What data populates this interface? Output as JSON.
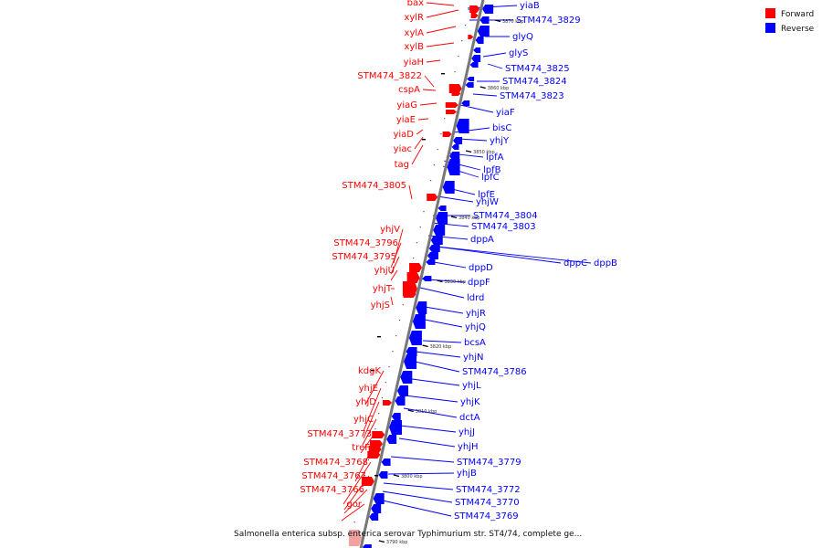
{
  "caption": "Salmonella enterica subsp. enterica serovar Typhimurium str. ST4/74, complete ge...",
  "legend": [
    {
      "label": "Forward",
      "color": "#ff0000"
    },
    {
      "label": "Reverse",
      "color": "#0000ff"
    }
  ],
  "colors": {
    "forward": "#ff0000",
    "reverse": "#0000ff",
    "backbone": "#777777",
    "forward_faint": "#f2a0a0"
  },
  "scale_ticks": [
    "3870 kbp",
    "3860 kbp",
    "3850 kbp",
    "3840 kbp",
    "3830 kbp",
    "3820 kbp",
    "3810 kbp",
    "3800 kbp",
    "3790 kbp"
  ],
  "forward_labels": [
    "bax",
    "xylR",
    "xylA",
    "xylB",
    "yiaH",
    "STM474_3822",
    "cspA",
    "yiaG",
    "yiaE",
    "yiaD",
    "yiac",
    "tag",
    "STM474_3805",
    "yhjV",
    "STM474_3796",
    "STM474_3795",
    "yhjU",
    "yhjT",
    "yhjS",
    "kdgK",
    "yhjE",
    "yhjD",
    "yhjC",
    "STM474_3773",
    "treF",
    "STM474_3768",
    "STM474_3767",
    "STM474_3766",
    "gor"
  ],
  "reverse_labels": [
    "yiaB",
    "STM474_3829",
    "glyQ",
    "glyS",
    "STM474_3825",
    "STM474_3824",
    "STM474_3823",
    "yiaF",
    "bisC",
    "yhjY",
    "lpfA",
    "lpfB",
    "lpfC",
    "lpfE",
    "yhjW",
    "STM474_3804",
    "STM474_3803",
    "dppA",
    "dppD",
    "dppC",
    "dppB",
    "dppF",
    "ldrd",
    "yhjR",
    "yhjQ",
    "bcsA",
    "yhjN",
    "STM474_3786",
    "yhjL",
    "yhjK",
    "dctA",
    "yhjJ",
    "yhjH",
    "STM474_3779",
    "yhjB",
    "STM474_3772",
    "STM474_3770",
    "STM474_3769"
  ]
}
